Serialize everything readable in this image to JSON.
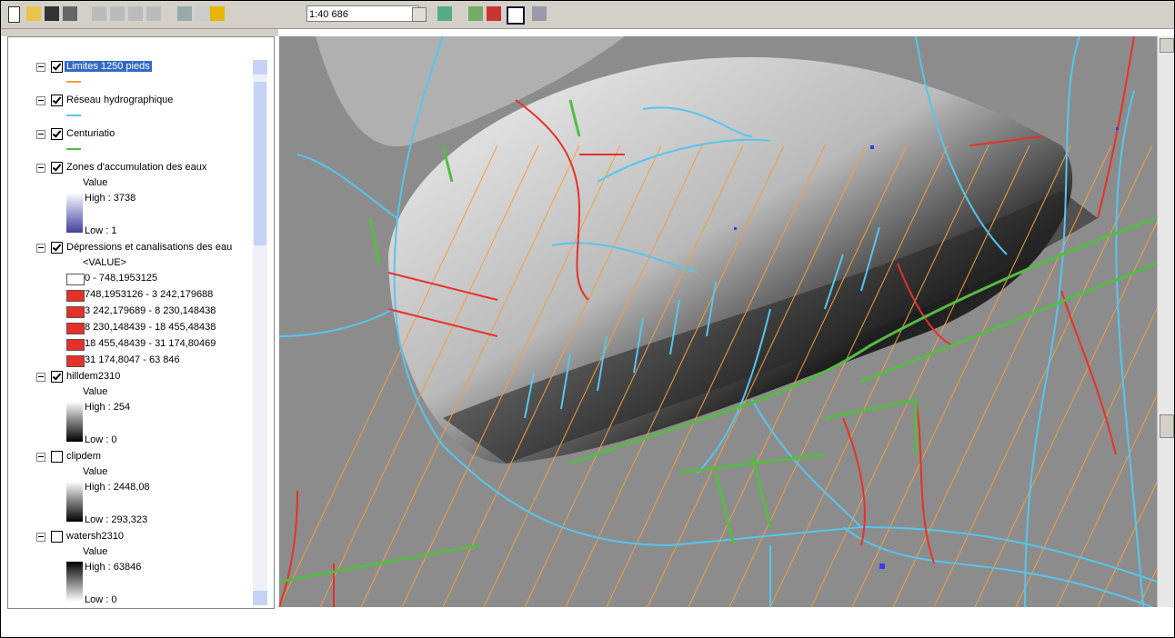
{
  "toolbar": {
    "scale": "1:40 686"
  },
  "toc": {
    "layers": [
      {
        "name": "Limites 1250 pieds",
        "checked": true
      },
      {
        "name": "Réseau hydrographique",
        "checked": true
      },
      {
        "name": "Centuriatio",
        "checked": true
      },
      {
        "name": "Zones d'accumulation des eaux",
        "checked": true,
        "field": "Value",
        "high": "High : 3738",
        "low": "Low : 1"
      },
      {
        "name": "Dépressions et  canalisations des eau",
        "checked": true,
        "field": "<VALUE>",
        "classes": [
          "0 - 748,1953125",
          "748,1953126 - 3 242,179688",
          "3 242,179689 - 8 230,148438",
          "8 230,148439 - 18 455,48438",
          "18 455,48439 - 31 174,80469",
          "31 174,8047 - 63 846"
        ]
      },
      {
        "name": "hilldem2310",
        "checked": true,
        "field": "Value",
        "high": "High : 254",
        "low": "Low : 0"
      },
      {
        "name": "clipdem",
        "checked": false,
        "field": "Value",
        "high": "High : 2448,08",
        "low": "Low : 293,323"
      },
      {
        "name": "watersh2310",
        "checked": false,
        "field": "Value",
        "high": "High : 63846",
        "low": "Low : 0"
      }
    ]
  }
}
